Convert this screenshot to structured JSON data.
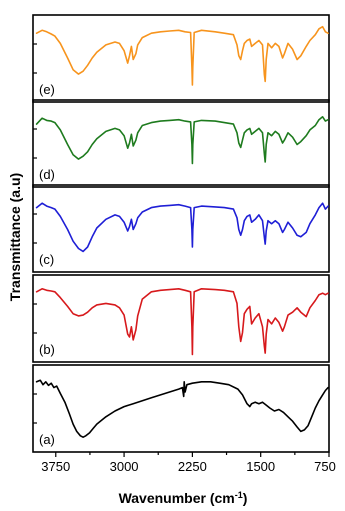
{
  "chart_data": {
    "type": "line",
    "title": "",
    "xlabel": "Wavenumber (cm",
    "xlabel_superscript": "-1",
    "xlabel_suffix": ")",
    "ylabel": "Transmittance (a.u)",
    "xlim": [
      4000,
      750
    ],
    "x_reversed": true,
    "xticks": [
      3750,
      3000,
      2250,
      1500,
      750
    ],
    "xtick_labels": [
      "3750",
      "3000",
      "2250",
      "1500",
      "750"
    ],
    "stacked_panels": true,
    "series": [
      {
        "name": "(e)",
        "color": "#F7941D",
        "x": [
          3960,
          3900,
          3850,
          3800,
          3760,
          3700,
          3620,
          3560,
          3500,
          3450,
          3400,
          3350,
          3300,
          3200,
          3100,
          3050,
          3000,
          2960,
          2940,
          2920,
          2900,
          2870,
          2850,
          2800,
          2700,
          2600,
          2500,
          2400,
          2330,
          2270,
          2255,
          2250,
          2245,
          2230,
          2150,
          2000,
          1900,
          1800,
          1760,
          1740,
          1720,
          1700,
          1680,
          1650,
          1620,
          1600,
          1560,
          1520,
          1480,
          1460,
          1450,
          1440,
          1420,
          1380,
          1340,
          1300,
          1260,
          1240,
          1200,
          1150,
          1100,
          1060,
          1000,
          960,
          900,
          860,
          820,
          790,
          760
        ],
        "y": [
          0.86,
          0.9,
          0.88,
          0.85,
          0.82,
          0.72,
          0.52,
          0.36,
          0.3,
          0.34,
          0.42,
          0.52,
          0.6,
          0.7,
          0.74,
          0.72,
          0.62,
          0.45,
          0.55,
          0.68,
          0.5,
          0.58,
          0.7,
          0.8,
          0.86,
          0.88,
          0.89,
          0.9,
          0.88,
          0.87,
          0.4,
          0.15,
          0.4,
          0.87,
          0.9,
          0.88,
          0.86,
          0.84,
          0.7,
          0.55,
          0.5,
          0.62,
          0.72,
          0.76,
          0.78,
          0.68,
          0.72,
          0.76,
          0.7,
          0.3,
          0.2,
          0.5,
          0.72,
          0.66,
          0.72,
          0.68,
          0.52,
          0.58,
          0.72,
          0.64,
          0.5,
          0.55,
          0.68,
          0.76,
          0.84,
          0.92,
          0.95,
          0.88,
          0.86
        ]
      },
      {
        "name": "(d)",
        "color": "#1E7B1E",
        "x": [
          3960,
          3900,
          3850,
          3800,
          3760,
          3700,
          3620,
          3560,
          3500,
          3450,
          3400,
          3350,
          3300,
          3200,
          3100,
          3050,
          3000,
          2960,
          2940,
          2920,
          2900,
          2870,
          2850,
          2800,
          2700,
          2600,
          2500,
          2400,
          2330,
          2270,
          2255,
          2250,
          2245,
          2230,
          2150,
          2000,
          1900,
          1800,
          1760,
          1740,
          1720,
          1700,
          1680,
          1650,
          1620,
          1600,
          1560,
          1520,
          1480,
          1460,
          1450,
          1440,
          1420,
          1380,
          1340,
          1300,
          1260,
          1240,
          1200,
          1150,
          1100,
          1060,
          1000,
          960,
          900,
          860,
          820,
          790,
          760
        ],
        "y": [
          0.78,
          0.86,
          0.83,
          0.82,
          0.8,
          0.7,
          0.5,
          0.36,
          0.3,
          0.34,
          0.4,
          0.5,
          0.58,
          0.68,
          0.72,
          0.7,
          0.62,
          0.45,
          0.52,
          0.64,
          0.48,
          0.56,
          0.66,
          0.76,
          0.8,
          0.82,
          0.83,
          0.84,
          0.82,
          0.81,
          0.5,
          0.24,
          0.5,
          0.81,
          0.83,
          0.82,
          0.8,
          0.78,
          0.66,
          0.52,
          0.46,
          0.56,
          0.66,
          0.7,
          0.72,
          0.64,
          0.68,
          0.72,
          0.66,
          0.38,
          0.26,
          0.5,
          0.66,
          0.62,
          0.68,
          0.64,
          0.52,
          0.56,
          0.66,
          0.6,
          0.5,
          0.54,
          0.62,
          0.7,
          0.76,
          0.84,
          0.88,
          0.82,
          0.84
        ]
      },
      {
        "name": "(c)",
        "color": "#1F1FD6",
        "x": [
          3960,
          3900,
          3850,
          3800,
          3760,
          3700,
          3620,
          3560,
          3500,
          3450,
          3400,
          3350,
          3300,
          3200,
          3100,
          3050,
          3000,
          2960,
          2940,
          2920,
          2900,
          2870,
          2850,
          2800,
          2700,
          2600,
          2500,
          2400,
          2330,
          2270,
          2255,
          2250,
          2245,
          2230,
          2150,
          2000,
          1900,
          1800,
          1760,
          1740,
          1720,
          1700,
          1680,
          1650,
          1620,
          1600,
          1560,
          1520,
          1480,
          1460,
          1450,
          1440,
          1420,
          1380,
          1340,
          1300,
          1260,
          1240,
          1200,
          1150,
          1100,
          1060,
          1000,
          960,
          900,
          860,
          820,
          790,
          760
        ],
        "y": [
          0.8,
          0.86,
          0.82,
          0.8,
          0.78,
          0.68,
          0.5,
          0.34,
          0.24,
          0.2,
          0.26,
          0.4,
          0.52,
          0.64,
          0.7,
          0.68,
          0.6,
          0.48,
          0.54,
          0.64,
          0.5,
          0.58,
          0.66,
          0.74,
          0.8,
          0.82,
          0.83,
          0.84,
          0.82,
          0.8,
          0.5,
          0.26,
          0.5,
          0.8,
          0.82,
          0.81,
          0.8,
          0.78,
          0.66,
          0.5,
          0.42,
          0.5,
          0.62,
          0.68,
          0.7,
          0.6,
          0.64,
          0.7,
          0.62,
          0.4,
          0.3,
          0.48,
          0.62,
          0.58,
          0.62,
          0.58,
          0.46,
          0.5,
          0.6,
          0.52,
          0.42,
          0.4,
          0.46,
          0.58,
          0.7,
          0.8,
          0.86,
          0.78,
          0.82
        ]
      },
      {
        "name": "(b)",
        "color": "#D7191C",
        "x": [
          3960,
          3900,
          3850,
          3800,
          3760,
          3700,
          3620,
          3560,
          3500,
          3450,
          3400,
          3350,
          3300,
          3200,
          3100,
          3050,
          3000,
          2960,
          2940,
          2920,
          2900,
          2870,
          2850,
          2800,
          2700,
          2600,
          2500,
          2400,
          2330,
          2270,
          2255,
          2250,
          2245,
          2230,
          2150,
          2000,
          1900,
          1800,
          1760,
          1740,
          1720,
          1700,
          1680,
          1650,
          1620,
          1600,
          1560,
          1520,
          1480,
          1460,
          1450,
          1440,
          1420,
          1380,
          1340,
          1300,
          1260,
          1240,
          1200,
          1150,
          1100,
          1060,
          1000,
          960,
          900,
          860,
          820,
          790,
          760
        ],
        "y": [
          0.88,
          0.92,
          0.9,
          0.89,
          0.88,
          0.8,
          0.68,
          0.58,
          0.55,
          0.56,
          0.6,
          0.66,
          0.7,
          0.72,
          0.7,
          0.66,
          0.56,
          0.3,
          0.26,
          0.4,
          0.22,
          0.36,
          0.55,
          0.78,
          0.88,
          0.9,
          0.91,
          0.92,
          0.9,
          0.88,
          0.4,
          0.02,
          0.4,
          0.88,
          0.92,
          0.91,
          0.9,
          0.88,
          0.72,
          0.4,
          0.2,
          0.32,
          0.58,
          0.64,
          0.68,
          0.44,
          0.52,
          0.58,
          0.4,
          0.14,
          0.04,
          0.3,
          0.5,
          0.44,
          0.52,
          0.46,
          0.34,
          0.4,
          0.56,
          0.6,
          0.66,
          0.6,
          0.54,
          0.66,
          0.76,
          0.84,
          0.86,
          0.84,
          0.86
        ]
      },
      {
        "name": "(a)",
        "color": "#000000",
        "x": [
          3960,
          3920,
          3890,
          3860,
          3830,
          3800,
          3770,
          3740,
          3700,
          3650,
          3600,
          3560,
          3520,
          3480,
          3450,
          3420,
          3380,
          3340,
          3300,
          3200,
          3100,
          3000,
          2900,
          2800,
          2700,
          2600,
          2500,
          2400,
          2360,
          2345,
          2340,
          2330,
          2310,
          2250,
          2150,
          2050,
          1950,
          1850,
          1750,
          1700,
          1650,
          1620,
          1600,
          1560,
          1520,
          1480,
          1440,
          1400,
          1350,
          1300,
          1250,
          1200,
          1150,
          1100,
          1060,
          1020,
          980,
          940,
          900,
          860,
          820,
          790,
          760
        ],
        "y": [
          0.88,
          0.9,
          0.84,
          0.88,
          0.83,
          0.86,
          0.8,
          0.82,
          0.72,
          0.6,
          0.44,
          0.3,
          0.2,
          0.14,
          0.12,
          0.14,
          0.18,
          0.24,
          0.3,
          0.4,
          0.48,
          0.54,
          0.58,
          0.62,
          0.66,
          0.7,
          0.74,
          0.78,
          0.8,
          0.68,
          0.88,
          0.74,
          0.84,
          0.86,
          0.88,
          0.88,
          0.86,
          0.84,
          0.78,
          0.7,
          0.58,
          0.54,
          0.58,
          0.6,
          0.58,
          0.6,
          0.56,
          0.52,
          0.48,
          0.5,
          0.46,
          0.4,
          0.34,
          0.26,
          0.2,
          0.22,
          0.28,
          0.4,
          0.52,
          0.62,
          0.7,
          0.76,
          0.8
        ]
      }
    ]
  }
}
